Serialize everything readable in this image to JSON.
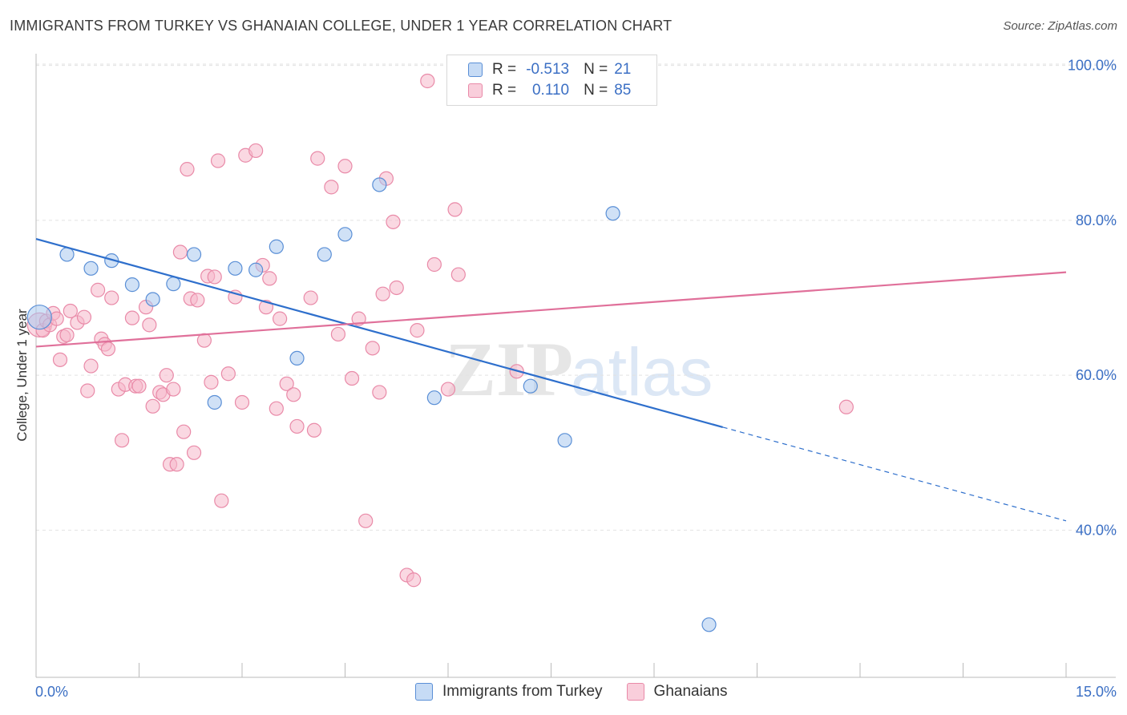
{
  "header": {
    "title": "IMMIGRANTS FROM TURKEY VS GHANAIAN COLLEGE, UNDER 1 YEAR CORRELATION CHART",
    "source": "Source: ZipAtlas.com"
  },
  "legend_top": {
    "rows": [
      {
        "r_label": "R =",
        "r_value": "-0.513",
        "n_label": "N =",
        "n_value": "21"
      },
      {
        "r_label": "R =",
        "r_value": "0.110",
        "n_label": "N =",
        "n_value": "85"
      }
    ]
  },
  "watermark": {
    "zip": "ZIP",
    "atlas": "atlas"
  },
  "colors": {
    "blue_fill": "#aac8ee",
    "blue_stroke": "#5a8fd6",
    "blue_line": "#2e6fcc",
    "pink_fill": "#f5b8cb",
    "pink_stroke": "#e98aa8",
    "pink_line": "#e0709a",
    "tick_label": "#3b6fc4",
    "grid": "#e2e2e2"
  },
  "chart_data": {
    "type": "scatter",
    "title": "IMMIGRANTS FROM TURKEY VS GHANAIAN COLLEGE, UNDER 1 YEAR CORRELATION CHART",
    "xlabel": "",
    "ylabel": "College, Under 1 year",
    "xlim": [
      0,
      15
    ],
    "ylim": [
      21,
      101
    ],
    "x_tick_labels": [
      "0.0%",
      "15.0%"
    ],
    "y_tick_labels": [
      "100.0%",
      "80.0%",
      "60.0%",
      "40.0%"
    ],
    "y_ticks": [
      100,
      80,
      60,
      40
    ],
    "grid": true,
    "legend_position": "bottom",
    "series": [
      {
        "name": "Immigrants from Turkey",
        "color": "blue",
        "trend": {
          "x": [
            0,
            10.0
          ],
          "y": [
            77.6,
            53.3
          ],
          "dashed_to": [
            15,
            41.2
          ]
        },
        "points": [
          {
            "x": 0.05,
            "y": 67.5,
            "big": true
          },
          {
            "x": 0.45,
            "y": 75.6
          },
          {
            "x": 0.8,
            "y": 73.8
          },
          {
            "x": 1.1,
            "y": 74.8
          },
          {
            "x": 1.4,
            "y": 71.7
          },
          {
            "x": 1.7,
            "y": 69.8
          },
          {
            "x": 2.0,
            "y": 71.8
          },
          {
            "x": 2.3,
            "y": 75.6
          },
          {
            "x": 2.6,
            "y": 56.5
          },
          {
            "x": 2.9,
            "y": 73.8
          },
          {
            "x": 3.2,
            "y": 73.6
          },
          {
            "x": 3.5,
            "y": 76.6
          },
          {
            "x": 3.8,
            "y": 62.2
          },
          {
            "x": 4.2,
            "y": 75.6
          },
          {
            "x": 4.5,
            "y": 78.2
          },
          {
            "x": 5.0,
            "y": 84.6
          },
          {
            "x": 5.8,
            "y": 57.1
          },
          {
            "x": 7.2,
            "y": 58.6
          },
          {
            "x": 7.7,
            "y": 51.6
          },
          {
            "x": 8.4,
            "y": 80.9
          },
          {
            "x": 9.8,
            "y": 27.8
          }
        ]
      },
      {
        "name": "Ghanaians",
        "color": "pink",
        "trend": {
          "x": [
            0,
            15
          ],
          "y": [
            63.7,
            73.3
          ]
        },
        "points": [
          {
            "x": 0.05,
            "y": 66.5,
            "big": true
          },
          {
            "x": 0.1,
            "y": 65.8
          },
          {
            "x": 0.15,
            "y": 67.0
          },
          {
            "x": 0.2,
            "y": 66.5
          },
          {
            "x": 0.25,
            "y": 68.0
          },
          {
            "x": 0.3,
            "y": 67.3
          },
          {
            "x": 0.35,
            "y": 62.0
          },
          {
            "x": 0.4,
            "y": 65.0
          },
          {
            "x": 0.45,
            "y": 65.2
          },
          {
            "x": 0.5,
            "y": 68.3
          },
          {
            "x": 0.6,
            "y": 66.8
          },
          {
            "x": 0.7,
            "y": 67.5
          },
          {
            "x": 0.75,
            "y": 58.0
          },
          {
            "x": 0.8,
            "y": 61.2
          },
          {
            "x": 0.9,
            "y": 71.0
          },
          {
            "x": 0.95,
            "y": 64.7
          },
          {
            "x": 1.0,
            "y": 64.0
          },
          {
            "x": 1.05,
            "y": 63.4
          },
          {
            "x": 1.1,
            "y": 70.0
          },
          {
            "x": 1.2,
            "y": 58.2
          },
          {
            "x": 1.25,
            "y": 51.6
          },
          {
            "x": 1.3,
            "y": 58.8
          },
          {
            "x": 1.4,
            "y": 67.4
          },
          {
            "x": 1.45,
            "y": 58.6
          },
          {
            "x": 1.5,
            "y": 58.6
          },
          {
            "x": 1.6,
            "y": 68.8
          },
          {
            "x": 1.65,
            "y": 66.5
          },
          {
            "x": 1.7,
            "y": 56.0
          },
          {
            "x": 1.8,
            "y": 57.8
          },
          {
            "x": 1.85,
            "y": 57.5
          },
          {
            "x": 1.9,
            "y": 60.0
          },
          {
            "x": 1.95,
            "y": 48.5
          },
          {
            "x": 2.0,
            "y": 58.2
          },
          {
            "x": 2.05,
            "y": 48.5
          },
          {
            "x": 2.1,
            "y": 75.9
          },
          {
            "x": 2.15,
            "y": 52.7
          },
          {
            "x": 2.2,
            "y": 86.6
          },
          {
            "x": 2.25,
            "y": 69.9
          },
          {
            "x": 2.3,
            "y": 50.0
          },
          {
            "x": 2.35,
            "y": 69.7
          },
          {
            "x": 2.45,
            "y": 64.5
          },
          {
            "x": 2.5,
            "y": 72.8
          },
          {
            "x": 2.55,
            "y": 59.1
          },
          {
            "x": 2.6,
            "y": 72.7
          },
          {
            "x": 2.65,
            "y": 87.7
          },
          {
            "x": 2.7,
            "y": 43.8
          },
          {
            "x": 2.8,
            "y": 60.2
          },
          {
            "x": 2.9,
            "y": 70.1
          },
          {
            "x": 3.0,
            "y": 56.5
          },
          {
            "x": 3.05,
            "y": 88.4
          },
          {
            "x": 3.2,
            "y": 89.0
          },
          {
            "x": 3.3,
            "y": 74.2
          },
          {
            "x": 3.35,
            "y": 68.8
          },
          {
            "x": 3.4,
            "y": 72.5
          },
          {
            "x": 3.5,
            "y": 55.7
          },
          {
            "x": 3.55,
            "y": 67.3
          },
          {
            "x": 3.65,
            "y": 58.9
          },
          {
            "x": 3.75,
            "y": 57.5
          },
          {
            "x": 3.8,
            "y": 53.4
          },
          {
            "x": 4.0,
            "y": 70.0
          },
          {
            "x": 4.05,
            "y": 52.9
          },
          {
            "x": 4.1,
            "y": 88.0
          },
          {
            "x": 4.3,
            "y": 84.3
          },
          {
            "x": 4.4,
            "y": 65.3
          },
          {
            "x": 4.5,
            "y": 87.0
          },
          {
            "x": 4.6,
            "y": 59.6
          },
          {
            "x": 4.7,
            "y": 67.3
          },
          {
            "x": 4.8,
            "y": 41.2
          },
          {
            "x": 4.9,
            "y": 63.5
          },
          {
            "x": 5.0,
            "y": 57.8
          },
          {
            "x": 5.05,
            "y": 70.5
          },
          {
            "x": 5.1,
            "y": 85.4
          },
          {
            "x": 5.2,
            "y": 79.8
          },
          {
            "x": 5.25,
            "y": 71.3
          },
          {
            "x": 5.4,
            "y": 34.2
          },
          {
            "x": 5.5,
            "y": 33.6
          },
          {
            "x": 5.55,
            "y": 65.8
          },
          {
            "x": 5.7,
            "y": 98.0
          },
          {
            "x": 5.8,
            "y": 74.3
          },
          {
            "x": 6.0,
            "y": 58.2
          },
          {
            "x": 6.1,
            "y": 81.4
          },
          {
            "x": 6.15,
            "y": 73.0
          },
          {
            "x": 6.9,
            "y": 96.9
          },
          {
            "x": 7.0,
            "y": 60.5
          },
          {
            "x": 11.8,
            "y": 55.9
          }
        ]
      }
    ]
  },
  "bottom_legend": {
    "items": [
      "Immigrants from Turkey",
      "Ghanaians"
    ]
  }
}
